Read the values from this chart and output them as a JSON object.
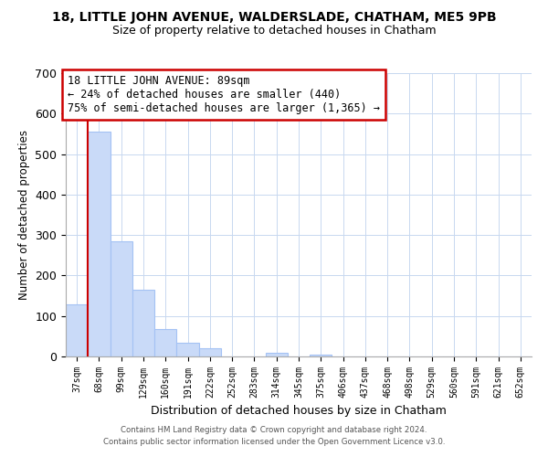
{
  "title": "18, LITTLE JOHN AVENUE, WALDERSLADE, CHATHAM, ME5 9PB",
  "subtitle": "Size of property relative to detached houses in Chatham",
  "xlabel": "Distribution of detached houses by size in Chatham",
  "ylabel": "Number of detached properties",
  "bar_labels": [
    "37sqm",
    "68sqm",
    "99sqm",
    "129sqm",
    "160sqm",
    "191sqm",
    "222sqm",
    "252sqm",
    "283sqm",
    "314sqm",
    "345sqm",
    "375sqm",
    "406sqm",
    "437sqm",
    "468sqm",
    "498sqm",
    "529sqm",
    "560sqm",
    "591sqm",
    "621sqm",
    "652sqm"
  ],
  "bar_values": [
    128,
    556,
    284,
    165,
    68,
    33,
    20,
    0,
    0,
    10,
    0,
    5,
    0,
    0,
    0,
    0,
    0,
    0,
    0,
    0,
    0
  ],
  "bar_color": "#c9daf8",
  "bar_edge_color": "#a4c2f4",
  "ylim": [
    0,
    700
  ],
  "yticks": [
    0,
    100,
    200,
    300,
    400,
    500,
    600,
    700
  ],
  "red_line_x": 1.0,
  "annotation_line1": "18 LITTLE JOHN AVENUE: 89sqm",
  "annotation_line2": "← 24% of detached houses are smaller (440)",
  "annotation_line3": "75% of semi-detached houses are larger (1,365) →",
  "annotation_box_color": "#ffffff",
  "annotation_box_edge": "#cc0000",
  "footer_line1": "Contains HM Land Registry data © Crown copyright and database right 2024.",
  "footer_line2": "Contains public sector information licensed under the Open Government Licence v3.0.",
  "bg_color": "#ffffff",
  "grid_color": "#c8d8f0"
}
